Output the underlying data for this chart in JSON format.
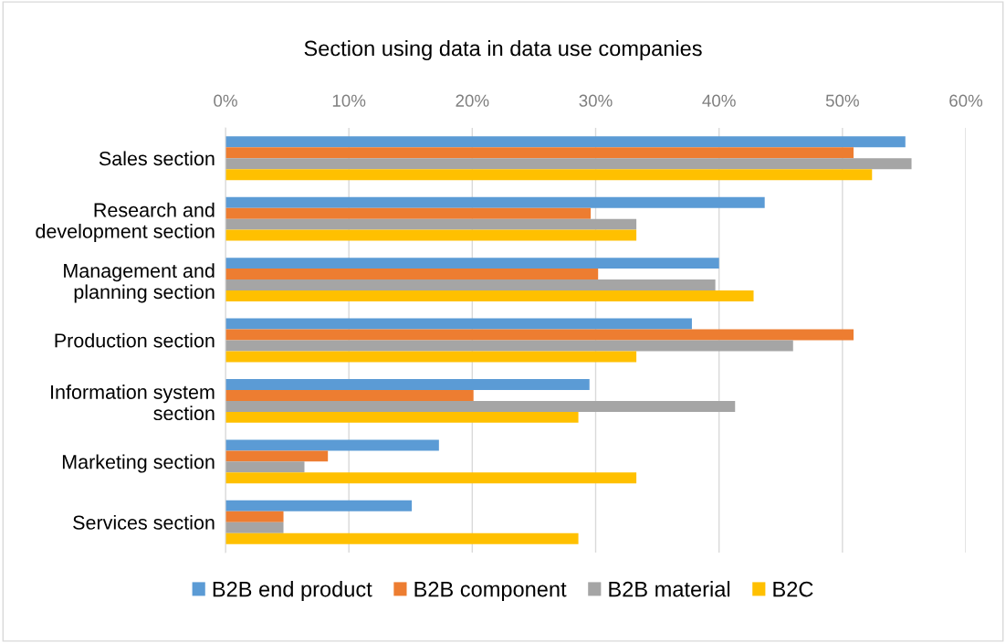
{
  "chart_data": {
    "type": "bar",
    "orientation": "horizontal",
    "title": "Section using data in data use companies",
    "categories": [
      "Sales section",
      "Research and\ndevelopment section",
      "Management and\nplanning section",
      "Production section",
      "Information system\nsection",
      "Marketing section",
      "Services section"
    ],
    "series": [
      {
        "name": "B2B end product",
        "color": "#5b9bd5",
        "values": [
          55.1,
          43.7,
          40.0,
          37.8,
          29.5,
          17.3,
          15.1
        ]
      },
      {
        "name": "B2B component",
        "color": "#ed7d31",
        "values": [
          50.9,
          29.6,
          30.2,
          50.9,
          20.1,
          8.3,
          4.7
        ]
      },
      {
        "name": "B2B material",
        "color": "#a5a5a5",
        "values": [
          55.6,
          33.3,
          39.7,
          46.0,
          41.3,
          6.4,
          4.7
        ]
      },
      {
        "name": "B2C",
        "color": "#ffc000",
        "values": [
          52.4,
          33.3,
          42.8,
          33.3,
          28.6,
          33.3,
          28.6
        ]
      }
    ],
    "xlim": [
      0,
      60
    ],
    "xticks": [
      {
        "value": 0,
        "label": "0%"
      },
      {
        "value": 10,
        "label": "10%"
      },
      {
        "value": 20,
        "label": "20%"
      },
      {
        "value": 30,
        "label": "30%"
      },
      {
        "value": 40,
        "label": "40%"
      },
      {
        "value": 50,
        "label": "50%"
      },
      {
        "value": 60,
        "label": "60%"
      }
    ],
    "grid": "x",
    "legend": "bottom"
  }
}
